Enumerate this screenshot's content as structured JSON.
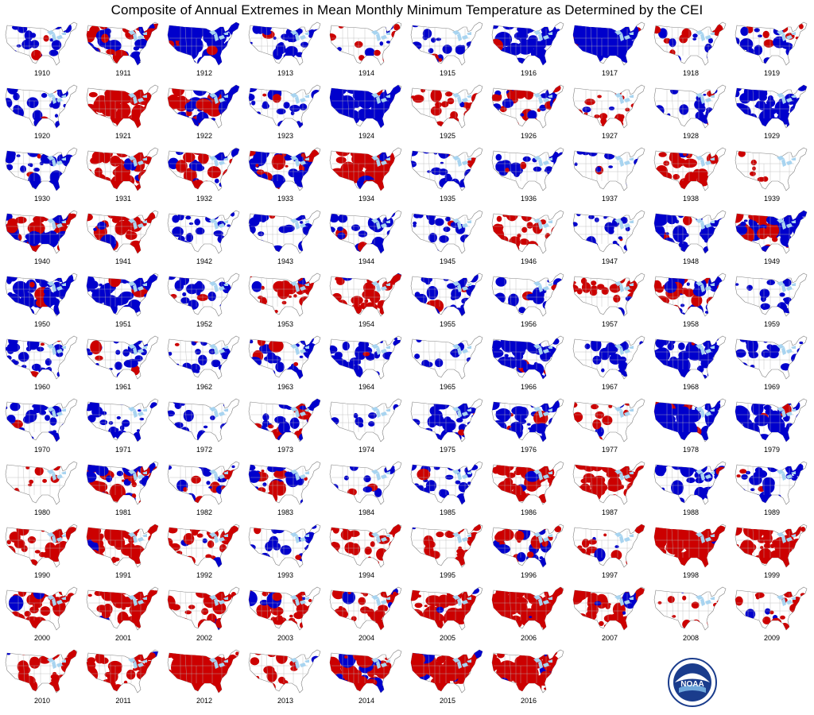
{
  "title": "Composite of Annual Extremes in Mean Monthly Minimum Temperature as Determined by the CEI",
  "colors": {
    "warm": "#cc0000",
    "cold": "#0000cc",
    "lakes": "#a8d4f0",
    "outline": "#b8b8b8",
    "border": "#808080"
  },
  "logo": {
    "text": "NOAA"
  },
  "years": [
    {
      "year": "1910",
      "pattern": "cold",
      "level": 0.3
    },
    {
      "year": "1911",
      "pattern": "mixed",
      "level": 0.6
    },
    {
      "year": "1912",
      "pattern": "cold",
      "level": 0.8
    },
    {
      "year": "1913",
      "pattern": "cold",
      "level": 0.4
    },
    {
      "year": "1914",
      "pattern": "mixed",
      "level": 0.2
    },
    {
      "year": "1915",
      "pattern": "cold",
      "level": 0.2
    },
    {
      "year": "1916",
      "pattern": "cold",
      "level": 0.7
    },
    {
      "year": "1917",
      "pattern": "cold",
      "level": 0.95
    },
    {
      "year": "1918",
      "pattern": "mixed",
      "level": 0.2
    },
    {
      "year": "1919",
      "pattern": "mixed",
      "level": 0.4
    },
    {
      "year": "1920",
      "pattern": "cold",
      "level": 0.3
    },
    {
      "year": "1921",
      "pattern": "warm",
      "level": 0.7
    },
    {
      "year": "1922",
      "pattern": "mixed",
      "level": 0.6
    },
    {
      "year": "1923",
      "pattern": "cold",
      "level": 0.4
    },
    {
      "year": "1924",
      "pattern": "cold",
      "level": 0.9
    },
    {
      "year": "1925",
      "pattern": "warm",
      "level": 0.3
    },
    {
      "year": "1926",
      "pattern": "mixed",
      "level": 0.5
    },
    {
      "year": "1927",
      "pattern": "warm",
      "level": 0.3
    },
    {
      "year": "1928",
      "pattern": "cold",
      "level": 0.2
    },
    {
      "year": "1929",
      "pattern": "cold",
      "level": 0.7
    },
    {
      "year": "1930",
      "pattern": "cold",
      "level": 0.4
    },
    {
      "year": "1931",
      "pattern": "warm",
      "level": 0.6
    },
    {
      "year": "1932",
      "pattern": "mixed",
      "level": 0.4
    },
    {
      "year": "1933",
      "pattern": "mixed",
      "level": 0.6
    },
    {
      "year": "1934",
      "pattern": "warm",
      "level": 0.8
    },
    {
      "year": "1935",
      "pattern": "cold",
      "level": 0.3
    },
    {
      "year": "1936",
      "pattern": "cold",
      "level": 0.4
    },
    {
      "year": "1937",
      "pattern": "cold",
      "level": 0.2
    },
    {
      "year": "1938",
      "pattern": "warm",
      "level": 0.4
    },
    {
      "year": "1939",
      "pattern": "warm",
      "level": 0.1
    },
    {
      "year": "1940",
      "pattern": "mixed",
      "level": 0.7
    },
    {
      "year": "1941",
      "pattern": "warm",
      "level": 0.6
    },
    {
      "year": "1942",
      "pattern": "cold",
      "level": 0.3
    },
    {
      "year": "1943",
      "pattern": "cold",
      "level": 0.3
    },
    {
      "year": "1944",
      "pattern": "cold",
      "level": 0.4
    },
    {
      "year": "1945",
      "pattern": "cold",
      "level": 0.2
    },
    {
      "year": "1946",
      "pattern": "warm",
      "level": 0.4
    },
    {
      "year": "1947",
      "pattern": "cold",
      "level": 0.3
    },
    {
      "year": "1948",
      "pattern": "cold",
      "level": 0.5
    },
    {
      "year": "1949",
      "pattern": "mixed",
      "level": 0.7
    },
    {
      "year": "1950",
      "pattern": "cold",
      "level": 0.6
    },
    {
      "year": "1951",
      "pattern": "cold",
      "level": 0.6
    },
    {
      "year": "1952",
      "pattern": "cold",
      "level": 0.3
    },
    {
      "year": "1953",
      "pattern": "warm",
      "level": 0.4
    },
    {
      "year": "1954",
      "pattern": "warm",
      "level": 0.4
    },
    {
      "year": "1955",
      "pattern": "cold",
      "level": 0.4
    },
    {
      "year": "1956",
      "pattern": "cold",
      "level": 0.3
    },
    {
      "year": "1957",
      "pattern": "warm",
      "level": 0.3
    },
    {
      "year": "1958",
      "pattern": "mixed",
      "level": 0.6
    },
    {
      "year": "1959",
      "pattern": "cold",
      "level": 0.2
    },
    {
      "year": "1960",
      "pattern": "cold",
      "level": 0.4
    },
    {
      "year": "1961",
      "pattern": "cold",
      "level": 0.3
    },
    {
      "year": "1962",
      "pattern": "cold",
      "level": 0.2
    },
    {
      "year": "1963",
      "pattern": "cold",
      "level": 0.5
    },
    {
      "year": "1964",
      "pattern": "cold",
      "level": 0.4
    },
    {
      "year": "1965",
      "pattern": "cold",
      "level": 0.1
    },
    {
      "year": "1966",
      "pattern": "cold",
      "level": 0.6
    },
    {
      "year": "1967",
      "pattern": "cold",
      "level": 0.3
    },
    {
      "year": "1968",
      "pattern": "cold",
      "level": 0.6
    },
    {
      "year": "1969",
      "pattern": "cold",
      "level": 0.3
    },
    {
      "year": "1970",
      "pattern": "cold",
      "level": 0.3
    },
    {
      "year": "1971",
      "pattern": "cold",
      "level": 0.3
    },
    {
      "year": "1972",
      "pattern": "cold",
      "level": 0.3
    },
    {
      "year": "1973",
      "pattern": "mixed",
      "level": 0.5
    },
    {
      "year": "1974",
      "pattern": "cold",
      "level": 0.1
    },
    {
      "year": "1975",
      "pattern": "cold",
      "level": 0.5
    },
    {
      "year": "1976",
      "pattern": "cold",
      "level": 0.6
    },
    {
      "year": "1977",
      "pattern": "warm",
      "level": 0.2
    },
    {
      "year": "1978",
      "pattern": "cold",
      "level": 0.7
    },
    {
      "year": "1979",
      "pattern": "cold",
      "level": 0.7
    },
    {
      "year": "1980",
      "pattern": "warm",
      "level": 0.1
    },
    {
      "year": "1981",
      "pattern": "mixed",
      "level": 0.6
    },
    {
      "year": "1982",
      "pattern": "mixed",
      "level": 0.3
    },
    {
      "year": "1983",
      "pattern": "mixed",
      "level": 0.5
    },
    {
      "year": "1984",
      "pattern": "cold",
      "level": 0.2
    },
    {
      "year": "1985",
      "pattern": "cold",
      "level": 0.4
    },
    {
      "year": "1986",
      "pattern": "warm",
      "level": 0.6
    },
    {
      "year": "1987",
      "pattern": "warm",
      "level": 0.6
    },
    {
      "year": "1988",
      "pattern": "cold",
      "level": 0.5
    },
    {
      "year": "1989",
      "pattern": "cold",
      "level": 0.4
    },
    {
      "year": "1990",
      "pattern": "warm",
      "level": 0.5
    },
    {
      "year": "1991",
      "pattern": "warm",
      "level": 0.6
    },
    {
      "year": "1992",
      "pattern": "warm",
      "level": 0.3
    },
    {
      "year": "1993",
      "pattern": "cold",
      "level": 0.3
    },
    {
      "year": "1994",
      "pattern": "warm",
      "level": 0.4
    },
    {
      "year": "1995",
      "pattern": "warm",
      "level": 0.3
    },
    {
      "year": "1996",
      "pattern": "mixed",
      "level": 0.5
    },
    {
      "year": "1997",
      "pattern": "warm",
      "level": 0.3
    },
    {
      "year": "1998",
      "pattern": "warm",
      "level": 0.95
    },
    {
      "year": "1999",
      "pattern": "warm",
      "level": 0.7
    },
    {
      "year": "2000",
      "pattern": "warm",
      "level": 0.5
    },
    {
      "year": "2001",
      "pattern": "warm",
      "level": 0.7
    },
    {
      "year": "2002",
      "pattern": "warm",
      "level": 0.4
    },
    {
      "year": "2003",
      "pattern": "warm",
      "level": 0.5
    },
    {
      "year": "2004",
      "pattern": "warm",
      "level": 0.5
    },
    {
      "year": "2005",
      "pattern": "warm",
      "level": 0.6
    },
    {
      "year": "2006",
      "pattern": "warm",
      "level": 0.8
    },
    {
      "year": "2007",
      "pattern": "warm",
      "level": 0.6
    },
    {
      "year": "2008",
      "pattern": "warm",
      "level": 0.1
    },
    {
      "year": "2009",
      "pattern": "warm",
      "level": 0.2
    },
    {
      "year": "2010",
      "pattern": "warm",
      "level": 0.4
    },
    {
      "year": "2011",
      "pattern": "warm",
      "level": 0.5
    },
    {
      "year": "2012",
      "pattern": "warm",
      "level": 0.95
    },
    {
      "year": "2013",
      "pattern": "warm",
      "level": 0.3
    },
    {
      "year": "2014",
      "pattern": "mixed",
      "level": 0.7
    },
    {
      "year": "2015",
      "pattern": "warm",
      "level": 0.95
    },
    {
      "year": "2016",
      "pattern": "warm",
      "level": 0.9
    }
  ]
}
